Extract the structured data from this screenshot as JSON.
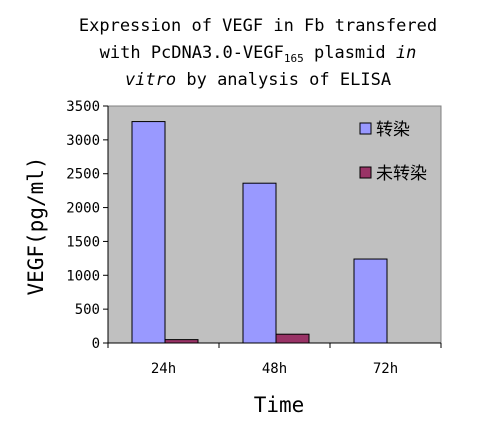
{
  "chart_data": {
    "type": "bar",
    "title": {
      "line1": "Expression of VEGF in Fb transfered",
      "line2_prefix": "with PcDNA3.0-VEGF",
      "line2_subscript": "165",
      "line2_suffix": " plasmid ",
      "line2_italic": "in",
      "line3_italic": "vitro",
      "line3_suffix": " by analysis of ELISA"
    },
    "xlabel": "Time",
    "ylabel": "VEGF(pg/ml)",
    "categories": [
      "24h",
      "48h",
      "72h"
    ],
    "series": [
      {
        "name": "转染",
        "color": "#9999ff",
        "values": [
          3270,
          2360,
          1240
        ]
      },
      {
        "name": "未转染",
        "color": "#993366",
        "values": [
          50,
          130,
          0
        ]
      }
    ],
    "ylim": [
      0,
      3500
    ],
    "yticks": [
      "0",
      "500",
      "1000",
      "1500",
      "2000",
      "2500",
      "3000",
      "3500"
    ],
    "plot_background": "#c0c0c0",
    "grid": false,
    "legend_position": "top-right"
  }
}
